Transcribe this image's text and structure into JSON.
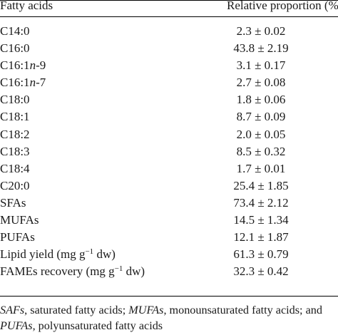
{
  "table": {
    "header": {
      "col_name": "Fatty acids",
      "col_value": "Relative proportion (%)"
    },
    "rows": [
      {
        "name": "C14:0",
        "value": "2.3 ± 0.02"
      },
      {
        "name": "C16:0",
        "value": "43.8 ± 2.19"
      },
      {
        "name_parts": [
          "C16:1",
          "n",
          "-9"
        ],
        "value": "3.1 ± 0.17"
      },
      {
        "name_parts": [
          "C16:1",
          "n",
          "-7"
        ],
        "value": "2.7 ± 0.08"
      },
      {
        "name": "C18:0",
        "value": "1.8 ± 0.06"
      },
      {
        "name": "C18:1",
        "value": "8.7 ± 0.09"
      },
      {
        "name": "C18:2",
        "value": "2.0 ± 0.05"
      },
      {
        "name": "C18:3",
        "value": "8.5 ± 0.32"
      },
      {
        "name": "C18:4",
        "value": "1.7 ± 0.01"
      },
      {
        "name": "C20:0",
        "value": "25.4 ± 1.85"
      },
      {
        "name": "SFAs",
        "value": "73.4 ± 2.12"
      },
      {
        "name": "MUFAs",
        "value": "14.5 ± 1.34"
      },
      {
        "name": "PUFAs",
        "value": "12.1 ± 1.87"
      },
      {
        "unit_parts": [
          "Lipid yield (mg g",
          "−1",
          " dw)"
        ],
        "value": "61.3 ± 0.79"
      },
      {
        "unit_parts": [
          "FAMEs recovery (mg g",
          "−1",
          " dw)"
        ],
        "value": "32.3 ± 0.42"
      }
    ]
  },
  "footnote": {
    "term1": "SAFs",
    "def1": ", saturated fatty acids; ",
    "term2": "MUFAs",
    "def2": ", monounsaturated fatty acids; and",
    "term3": "PUFAs",
    "def3": ", polyunsaturated fatty acids"
  }
}
